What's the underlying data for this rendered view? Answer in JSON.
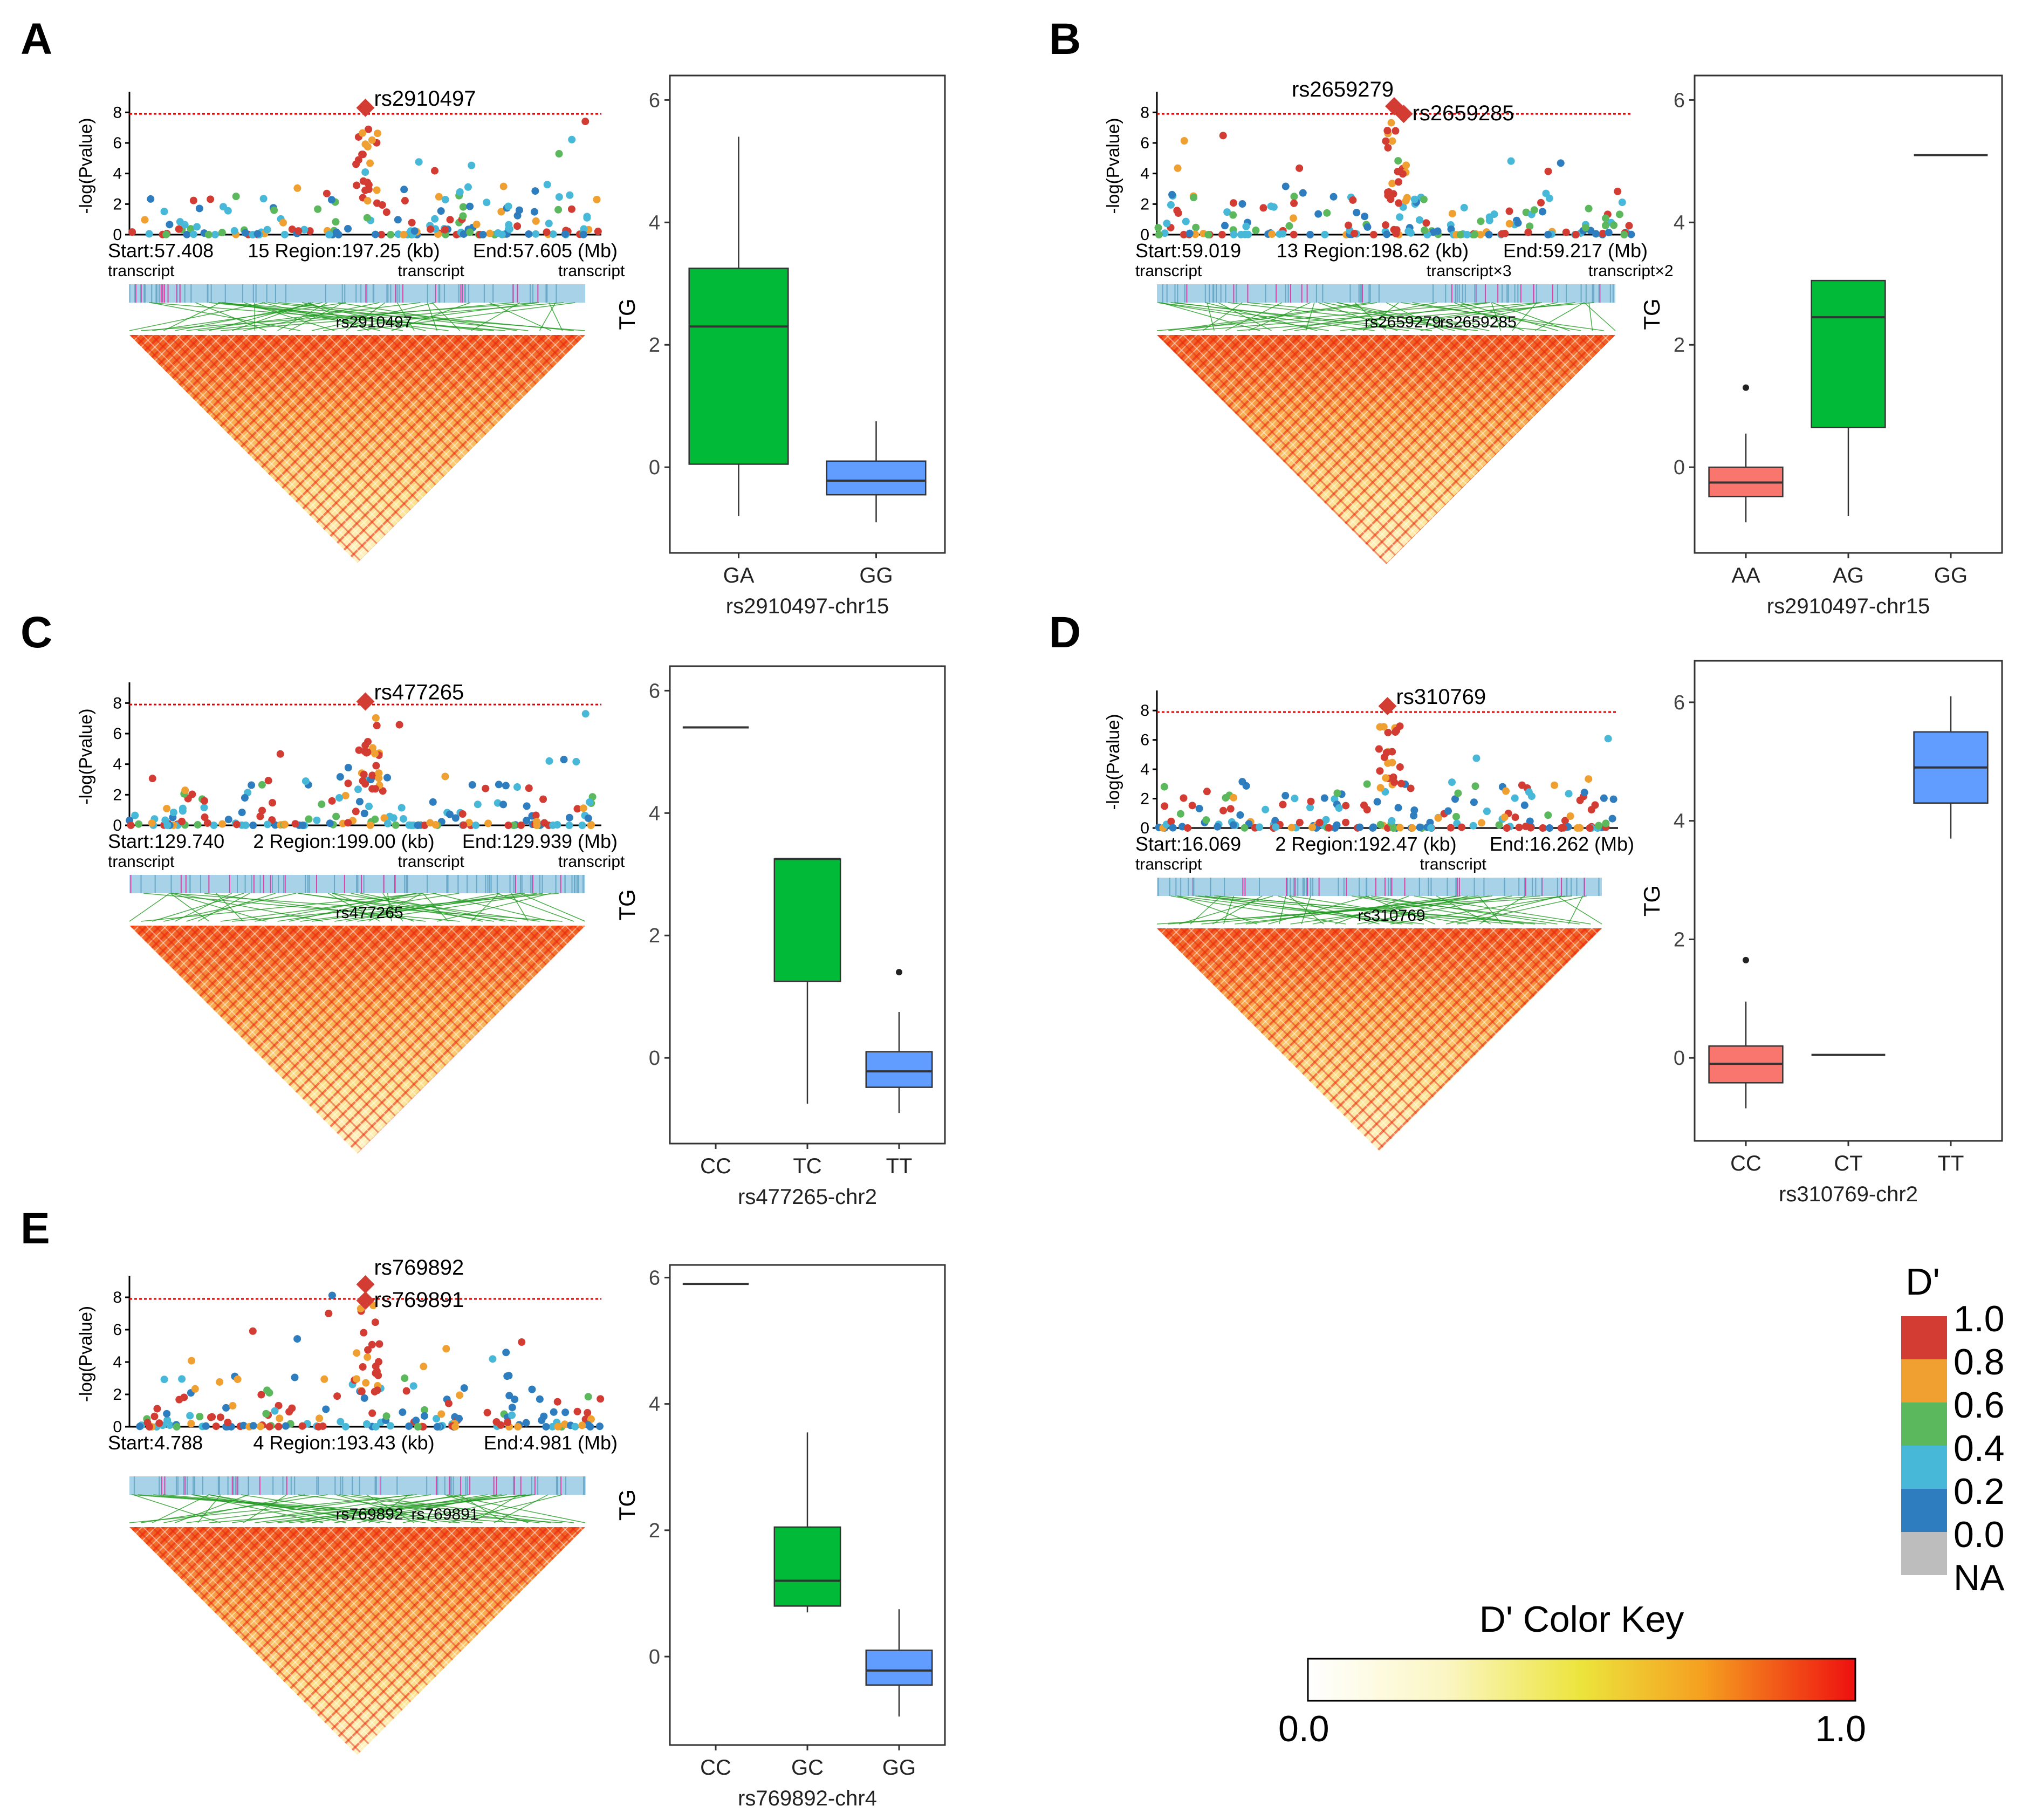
{
  "colors": {
    "AA": "#f8766d",
    "mid": "#00ba38",
    "hom": "#619cff",
    "ld_low": "#fffde0",
    "ld_mid": "#e8e23a",
    "ld_high": "#f5a623",
    "ld_max": "#e8120c",
    "threshold": "#e00000",
    "gene_bar": "#a7d2e8",
    "gene_tick": "#e040a8",
    "link": "#1f9a1f",
    "dp_1": "#d33c33",
    "dp_08": "#f0a030",
    "dp_06": "#5cb85c",
    "dp_04": "#47b8d8",
    "dp_02": "#2e7dbf",
    "dp_na": "#bdbdbd"
  },
  "panels": [
    {
      "label": "A",
      "manhattan": {
        "ylabel": "-log(Pvalue)",
        "yticks": [
          "0",
          "2",
          "4",
          "6",
          "8"
        ],
        "threshold": 7.9,
        "lead": [
          {
            "name": "rs2910497",
            "pos": 0.5,
            "p": 8.3
          }
        ],
        "region": {
          "start": "Start:57.408",
          "mid": "15 Region:197.25 (kb)",
          "end": "End:57.605 (Mb)"
        },
        "genes": [
          "transcript",
          "transcript",
          "transcript"
        ],
        "ld_labels": [
          "rs2910497"
        ]
      },
      "boxplot": {
        "ylabel": "TG",
        "xlabel": "rs2910497-chr15",
        "ylim": [
          -1.4,
          6.4
        ],
        "yticks": [
          0,
          2,
          4,
          6
        ],
        "categories": [
          "GA",
          "GG"
        ],
        "boxes": [
          {
            "genotype": "GA",
            "min": -0.8,
            "q1": 0.05,
            "median": 2.3,
            "q3": 3.25,
            "max": 5.4,
            "outliers": [],
            "color": "#00ba38"
          },
          {
            "genotype": "GG",
            "min": -0.9,
            "q1": -0.45,
            "median": -0.22,
            "q3": 0.1,
            "max": 0.75,
            "outliers": [],
            "color": "#619cff"
          }
        ]
      }
    },
    {
      "label": "B",
      "manhattan": {
        "ylabel": "-log(Pvalue)",
        "yticks": [
          "0",
          "2",
          "4",
          "6",
          "8"
        ],
        "threshold": 7.9,
        "lead": [
          {
            "name": "rs2659279",
            "pos": 0.5,
            "p": 8.4
          },
          {
            "name": "rs2659285",
            "pos": 0.52,
            "p": 7.9
          }
        ],
        "region": {
          "start": "Start:59.019",
          "mid": "13 Region:198.62 (kb)",
          "end": "End:59.217 (Mb)"
        },
        "genes": [
          "transcript",
          "transcript×3",
          "transcript×2"
        ],
        "ld_labels": [
          "rs2659279",
          "rs2659285"
        ]
      },
      "boxplot": {
        "ylabel": "TG",
        "xlabel": "rs2910497-chr15",
        "ylim": [
          -1.4,
          6.4
        ],
        "yticks": [
          0,
          2,
          4,
          6
        ],
        "categories": [
          "AA",
          "AG",
          "GG"
        ],
        "boxes": [
          {
            "genotype": "AA",
            "min": -0.9,
            "q1": -0.48,
            "median": -0.25,
            "q3": 0.0,
            "max": 0.55,
            "outliers": [
              1.3
            ],
            "color": "#f8766d"
          },
          {
            "genotype": "AG",
            "min": -0.8,
            "q1": 0.65,
            "median": 2.45,
            "q3": 3.05,
            "max": 3.05,
            "outliers": [],
            "color": "#00ba38"
          },
          {
            "genotype": "GG",
            "min": 5.1,
            "q1": 5.1,
            "median": 5.1,
            "q3": 5.1,
            "max": 5.1,
            "outliers": [],
            "color": "#619cff"
          }
        ]
      }
    },
    {
      "label": "C",
      "manhattan": {
        "ylabel": "-log(Pvalue)",
        "yticks": [
          "0",
          "2",
          "4",
          "6",
          "8"
        ],
        "threshold": 7.9,
        "lead": [
          {
            "name": "rs477265",
            "pos": 0.5,
            "p": 8.1
          }
        ],
        "region": {
          "start": "Start:129.740",
          "mid": "2 Region:199.00 (kb)",
          "end": "End:129.939 (Mb)"
        },
        "genes": [
          "transcript",
          "transcript",
          "transcript"
        ],
        "ld_labels": [
          "rs477265"
        ]
      },
      "boxplot": {
        "ylabel": "TG",
        "xlabel": "rs477265-chr2",
        "ylim": [
          -1.4,
          6.4
        ],
        "yticks": [
          0,
          2,
          4,
          6
        ],
        "categories": [
          "CC",
          "TC",
          "TT"
        ],
        "boxes": [
          {
            "genotype": "CC",
            "min": 5.4,
            "q1": 5.4,
            "median": 5.4,
            "q3": 5.4,
            "max": 5.4,
            "outliers": [],
            "color": "#f8766d"
          },
          {
            "genotype": "TC",
            "min": -0.75,
            "q1": 1.25,
            "median": 3.25,
            "q3": 3.25,
            "max": 3.25,
            "outliers": [],
            "color": "#00ba38"
          },
          {
            "genotype": "TT",
            "min": -0.9,
            "q1": -0.48,
            "median": -0.22,
            "q3": 0.1,
            "max": 0.75,
            "outliers": [
              1.4
            ],
            "color": "#619cff"
          }
        ]
      }
    },
    {
      "label": "D",
      "manhattan": {
        "ylabel": "-log(Pvalue)",
        "yticks": [
          "0",
          "2",
          "4",
          "6",
          "8"
        ],
        "threshold": 7.9,
        "lead": [
          {
            "name": "rs310769",
            "pos": 0.5,
            "p": 8.3
          }
        ],
        "region": {
          "start": "Start:16.069",
          "mid": "2 Region:192.47 (kb)",
          "end": "End:16.262 (Mb)"
        },
        "genes": [
          "transcript",
          "transcript"
        ],
        "ld_labels": [
          "rs310769"
        ]
      },
      "boxplot": {
        "ylabel": "TG",
        "xlabel": "rs310769-chr2",
        "ylim": [
          -1.4,
          6.7
        ],
        "yticks": [
          0,
          2,
          4,
          6
        ],
        "categories": [
          "CC",
          "CT",
          "TT"
        ],
        "boxes": [
          {
            "genotype": "CC",
            "min": -0.85,
            "q1": -0.42,
            "median": -0.1,
            "q3": 0.2,
            "max": 0.95,
            "outliers": [
              1.65
            ],
            "color": "#f8766d"
          },
          {
            "genotype": "CT",
            "min": 0.05,
            "q1": 0.05,
            "median": 0.05,
            "q3": 0.05,
            "max": 0.05,
            "outliers": [],
            "color": "#00ba38"
          },
          {
            "genotype": "TT",
            "min": 3.7,
            "q1": 4.3,
            "median": 4.9,
            "q3": 5.5,
            "max": 6.1,
            "outliers": [],
            "color": "#619cff"
          }
        ]
      }
    },
    {
      "label": "E",
      "manhattan": {
        "ylabel": "-log(Pvalue)",
        "yticks": [
          "0",
          "2",
          "4",
          "6",
          "8"
        ],
        "threshold": 7.9,
        "lead": [
          {
            "name": "rs769892",
            "pos": 0.5,
            "p": 8.8
          },
          {
            "name": "rs769891",
            "pos": 0.5,
            "p": 7.8
          }
        ],
        "region": {
          "start": "Start:4.788",
          "mid": "4 Region:193.43 (kb)",
          "end": "End:4.981 (Mb)"
        },
        "genes": [],
        "ld_labels": [
          "rs769892",
          "rs769891"
        ]
      },
      "boxplot": {
        "ylabel": "TG",
        "xlabel": "rs769892-chr4",
        "ylim": [
          -1.4,
          6.2
        ],
        "yticks": [
          0,
          2,
          4,
          6
        ],
        "categories": [
          "CC",
          "GC",
          "GG"
        ],
        "boxes": [
          {
            "genotype": "CC",
            "min": 5.9,
            "q1": 5.9,
            "median": 5.9,
            "q3": 5.9,
            "max": 5.9,
            "outliers": [],
            "color": "#f8766d"
          },
          {
            "genotype": "GC",
            "min": 0.7,
            "q1": 0.8,
            "median": 1.2,
            "q3": 2.05,
            "max": 3.55,
            "outliers": [],
            "color": "#00ba38"
          },
          {
            "genotype": "GG",
            "min": -0.95,
            "q1": -0.45,
            "median": -0.22,
            "q3": 0.1,
            "max": 0.75,
            "outliers": [],
            "color": "#619cff"
          }
        ]
      }
    }
  ],
  "legend_dprime": {
    "title": "D'",
    "labels": [
      "1.0",
      "0.8",
      "0.6",
      "0.4",
      "0.2",
      "0.0",
      "NA"
    ]
  },
  "color_key": {
    "title": "D' Color Key",
    "min_label": "0.0",
    "max_label": "1.0"
  }
}
